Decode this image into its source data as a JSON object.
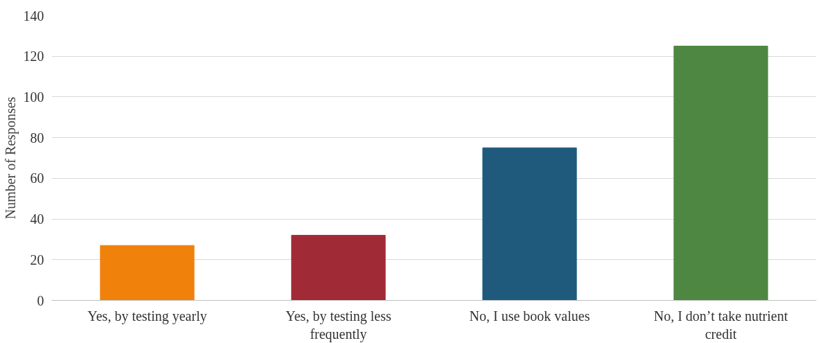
{
  "chart_data": {
    "type": "bar",
    "ylabel": "Number of Responses",
    "categories": [
      "Yes, by testing yearly",
      "Yes, by testing less frequently",
      "No, I use book values",
      "No, I don’t take nutrient credit"
    ],
    "values": [
      27,
      32,
      75,
      125
    ],
    "colors": [
      "#f0820c",
      "#a12a37",
      "#1f5a7d",
      "#4e8741"
    ],
    "ylim": [
      0,
      140
    ],
    "yticks": [
      0,
      20,
      40,
      60,
      80,
      100,
      120,
      140
    ],
    "grid": "y"
  }
}
